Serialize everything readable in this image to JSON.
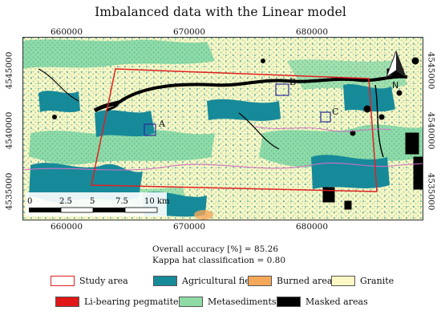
{
  "title": "Imbalanced data with the Linear model",
  "map": {
    "x_ticks_top": [
      "660000",
      "670000",
      "680000"
    ],
    "x_ticks_bottom": [
      "660000",
      "670000",
      "680000"
    ],
    "y_ticks_left": [
      "4545000",
      "4540000",
      "4535000"
    ],
    "y_ticks_right": [
      "4545000",
      "4540000",
      "4535000"
    ],
    "sites": [
      "A",
      "B",
      "C"
    ],
    "scale_labels": [
      "0",
      "2.5",
      "5",
      "7.5",
      "10 km"
    ],
    "north_arrow_icon": "north-arrow-icon"
  },
  "accuracy": {
    "overall": "Overall accuracy [%] = 85.26",
    "kappa": "Kappa hat classification = 0.80"
  },
  "legend": [
    {
      "label": "Study area",
      "color": "#ffffff",
      "border": "#e02020"
    },
    {
      "label": "Agricultural fields",
      "color": "#178a9a",
      "border": "#555555"
    },
    {
      "label": "Burned areas",
      "color": "#f6a85a",
      "border": "#555555"
    },
    {
      "label": "Granite",
      "color": "#fbf8c4",
      "border": "#555555"
    },
    {
      "label": "Li-bearing pegmatite",
      "color": "#e01818",
      "border": "#555555"
    },
    {
      "label": "Metasediments",
      "color": "#8fdba6",
      "border": "#555555"
    },
    {
      "label": "Masked areas",
      "color": "#000000",
      "border": "#555555"
    }
  ],
  "colors": {
    "granite": "#fbf8c4",
    "agri": "#178a9a",
    "meta": "#8fdba6",
    "masked": "#000000",
    "burned": "#f6a85a",
    "study": "#e02020",
    "boundary": "#d070c0",
    "site_box": "#2a2a9a"
  }
}
